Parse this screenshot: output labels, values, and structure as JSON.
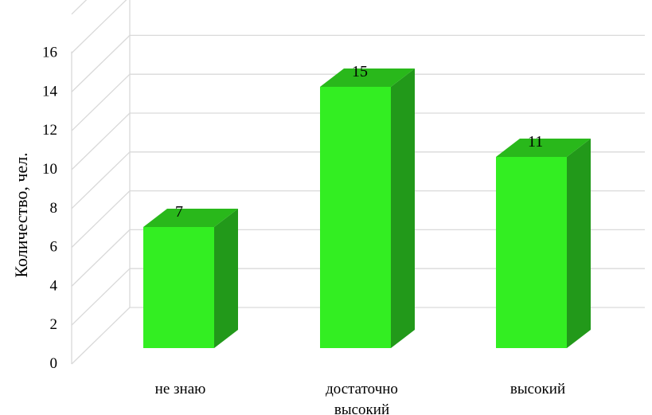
{
  "chart_data": {
    "type": "bar",
    "categories": [
      "не знаю",
      "достаточно высокий",
      "высокий"
    ],
    "category_lines": [
      [
        "не знаю"
      ],
      [
        "достаточно",
        "высокий"
      ],
      [
        "высокий"
      ]
    ],
    "values": [
      7,
      15,
      11
    ],
    "data_labels": [
      "7",
      "15",
      "11"
    ],
    "ylabel": "Количество, чел.",
    "ylim": [
      0,
      16
    ],
    "yticks": [
      "0",
      "2",
      "4",
      "6",
      "8",
      "10",
      "12",
      "14",
      "16"
    ],
    "style": "3d-column",
    "grid": true,
    "legend": "none",
    "colors": {
      "bar_front": "#33ee22",
      "bar_top": "#29b81b",
      "bar_side": "#22991a",
      "grid": "#d9d9d9"
    }
  }
}
